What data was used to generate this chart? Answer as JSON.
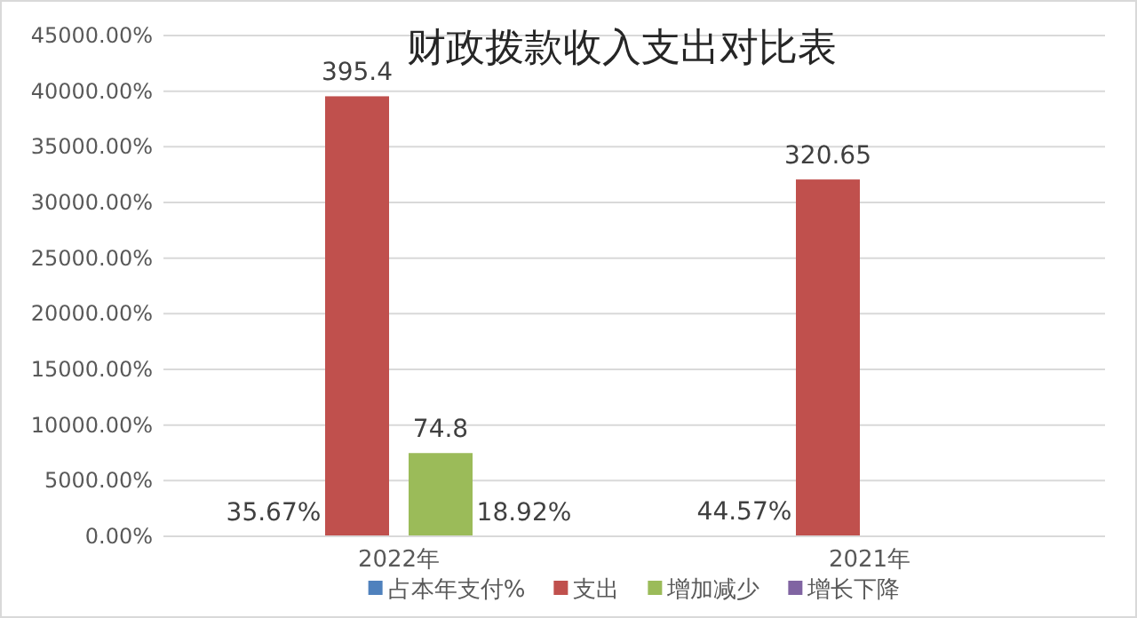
{
  "chart_data": {
    "type": "bar",
    "title": "财政拨款收入支出对比表",
    "categories": [
      "2022年",
      "2021年"
    ],
    "series": [
      {
        "name": "占本年支付%",
        "color": "#4f81bd",
        "values": [
          0.3567,
          0.4457
        ],
        "value_labels": [
          "35.67%",
          "44.57%"
        ]
      },
      {
        "name": "支出",
        "color": "#c0504d",
        "values": [
          395.4,
          320.65
        ],
        "value_labels": [
          "395.4",
          "320.65"
        ]
      },
      {
        "name": "增加减少",
        "color": "#9bbb59",
        "values": [
          74.8,
          null
        ],
        "value_labels": [
          "74.8",
          null
        ]
      },
      {
        "name": "增长下降",
        "color": "#8064a2",
        "values": [
          0.1892,
          null
        ],
        "value_labels": [
          "18.92%",
          null
        ]
      }
    ],
    "ylim": [
      0,
      450
    ],
    "yticks": [
      {
        "value": 0,
        "label": "0.00%"
      },
      {
        "value": 50,
        "label": "5000.00%"
      },
      {
        "value": 100,
        "label": "10000.00%"
      },
      {
        "value": 150,
        "label": "15000.00%"
      },
      {
        "value": 200,
        "label": "20000.00%"
      },
      {
        "value": 250,
        "label": "25000.00%"
      },
      {
        "value": 300,
        "label": "30000.00%"
      },
      {
        "value": 350,
        "label": "35000.00%"
      },
      {
        "value": 400,
        "label": "40000.00%"
      },
      {
        "value": 450,
        "label": "45000.00%"
      }
    ],
    "grid": "y",
    "legend": "bottom"
  }
}
